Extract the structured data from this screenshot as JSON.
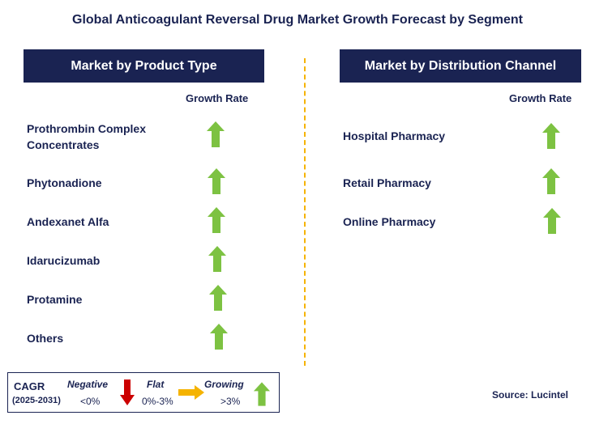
{
  "title": "Global Anticoagulant Reversal Drug Market Growth Forecast by Segment",
  "left_panel": {
    "header": "Market by Product Type",
    "column_label": "Growth Rate",
    "rows": [
      {
        "label": "Prothrombin Complex Concentrates",
        "trend": "growing"
      },
      {
        "label": "Phytonadione",
        "trend": "growing"
      },
      {
        "label": "Andexanet Alfa",
        "trend": "growing"
      },
      {
        "label": "Idarucizumab",
        "trend": "growing"
      },
      {
        "label": "Protamine",
        "trend": "growing"
      },
      {
        "label": "Others",
        "trend": "growing"
      }
    ]
  },
  "right_panel": {
    "header": "Market by Distribution Channel",
    "column_label": "Growth Rate",
    "rows": [
      {
        "label": "Hospital Pharmacy",
        "trend": "growing"
      },
      {
        "label": "Retail Pharmacy",
        "trend": "growing"
      },
      {
        "label": "Online Pharmacy",
        "trend": "growing"
      }
    ]
  },
  "legend": {
    "cagr_label": "CAGR",
    "period": "(2025-2031)",
    "negative": {
      "label": "Negative",
      "range": "<0%",
      "icon": "down-arrow-icon",
      "color": "#cc0000"
    },
    "flat": {
      "label": "Flat",
      "range": "0%-3%",
      "icon": "right-arrow-icon",
      "color": "#f5b300"
    },
    "growing": {
      "label": "Growing",
      "range": ">3%",
      "icon": "up-arrow-icon",
      "color": "#7dc242"
    }
  },
  "source": "Source: Lucintel",
  "colors": {
    "navy": "#1a2352",
    "green": "#7dc242",
    "orange": "#f5b300",
    "red": "#cc0000"
  }
}
